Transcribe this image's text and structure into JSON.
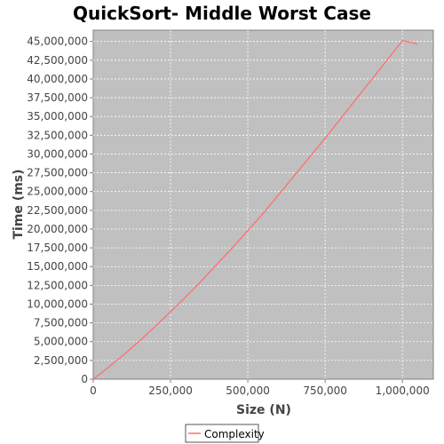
{
  "chart_data": {
    "type": "line",
    "title": "QuickSort- Middle Worst Case",
    "xlabel": "Size (N)",
    "ylabel": "Time (ms)",
    "xlim": [
      0,
      1100000
    ],
    "ylim": [
      0,
      46500000
    ],
    "x_ticks": [
      0,
      250000,
      500000,
      750000,
      1000000
    ],
    "x_tick_labels": [
      "0",
      "250,000",
      "500,000",
      "750,000",
      "1,000,000"
    ],
    "y_ticks": [
      0,
      2500000,
      5000000,
      7500000,
      10000000,
      12500000,
      15000000,
      17500000,
      20000000,
      22500000,
      25000000,
      27500000,
      30000000,
      32500000,
      35000000,
      37500000,
      40000000,
      42500000,
      45000000
    ],
    "y_tick_labels": [
      "0",
      "2,500,000",
      "5,000,000",
      "7,500,000",
      "10,000,000",
      "12,500,000",
      "15,000,000",
      "17,500,000",
      "20,000,000",
      "22,500,000",
      "25,000,000",
      "27,500,000",
      "30,000,000",
      "32,500,000",
      "35,000,000",
      "37,500,000",
      "40,000,000",
      "42,500,000",
      "45,000,000"
    ],
    "grid": true,
    "legend_position": "bottom-center",
    "series": [
      {
        "name": "Complexity",
        "color": "#ff6f6f",
        "x": [
          0,
          50000,
          100000,
          150000,
          200000,
          250000,
          300000,
          350000,
          400000,
          450000,
          500000,
          550000,
          600000,
          650000,
          700000,
          750000,
          800000,
          850000,
          900000,
          950000,
          1000000,
          1048576
        ],
        "y": [
          0,
          1600000,
          3300000,
          5100000,
          7000000,
          9000000,
          11000000,
          13100000,
          15300000,
          17500000,
          19800000,
          22100000,
          24600000,
          27100000,
          29600000,
          32100000,
          34700000,
          37300000,
          39900000,
          42500000,
          45100000,
          44700000
        ]
      }
    ]
  },
  "style": {
    "plot_background": "#c0c0c0",
    "grid_color": "#ffffff",
    "axis_color": "#808080"
  }
}
